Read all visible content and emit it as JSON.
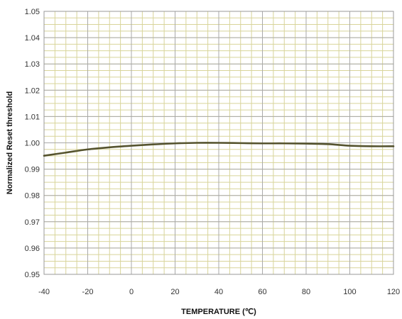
{
  "chart_data": {
    "type": "line",
    "title": "",
    "xlabel": "TEMPERATURE (℃)",
    "ylabel": "Normalized Reset threshold",
    "xlim": [
      -40,
      120
    ],
    "ylim": [
      0.95,
      1.05
    ],
    "x_ticks": [
      "-40",
      "-20",
      "0",
      "20",
      "40",
      "60",
      "80",
      "100",
      "120"
    ],
    "y_ticks": [
      "0.95",
      "0.96",
      "0.97",
      "0.98",
      "0.99",
      "1.00",
      "1.01",
      "1.02",
      "1.03",
      "1.04",
      "1.05"
    ],
    "grid": true,
    "legend": "none",
    "series": [
      {
        "color": "#55532e",
        "x": [
          -40,
          -30,
          -20,
          -10,
          0,
          10,
          20,
          30,
          40,
          50,
          60,
          70,
          80,
          90,
          100,
          110,
          120
        ],
        "y": [
          0.9951,
          0.9963,
          0.9975,
          0.9983,
          0.9989,
          0.9994,
          0.9998,
          1.0,
          1.0,
          0.9999,
          0.9998,
          0.9998,
          0.9997,
          0.9995,
          0.9989,
          0.9987,
          0.9987
        ]
      }
    ]
  }
}
